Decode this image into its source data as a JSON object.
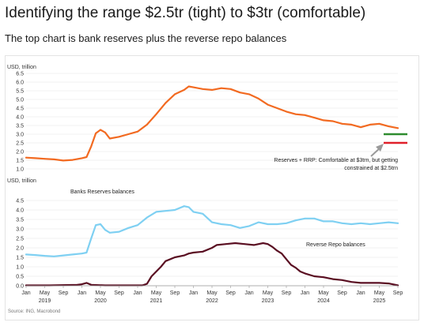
{
  "header": {
    "title": "Identifying the range $2.5tr (tight) to $3tr (comfortable)",
    "subtitle": "The top chart is bank reserves plus the reverse repo balances"
  },
  "source": "Source: ING, Macrobond",
  "colors": {
    "reserves_plus_rrp": "#f26a21",
    "bank_reserves": "#7fd0f2",
    "reverse_repo": "#5a0f22",
    "comfortable_line": "#2e8b2e",
    "tight_line": "#e0202a",
    "annotation_arrow": "#9a9a9a",
    "grid": "#e6e6e6"
  },
  "chart_data": [
    {
      "type": "line",
      "ylabel": "USD, trillion",
      "ylim": [
        1.0,
        6.5
      ],
      "yticks": [
        "6.5",
        "6.0",
        "5.5",
        "5.0",
        "4.5",
        "4.0",
        "3.5",
        "3.0",
        "2.5",
        "2.0",
        "1.5",
        "1.0"
      ],
      "xlim": [
        "2019-01",
        "2025-09"
      ],
      "series": [
        {
          "name": "",
          "points": [
            [
              "2019-01",
              1.65
            ],
            [
              "2019-03",
              1.62
            ],
            [
              "2019-05",
              1.58
            ],
            [
              "2019-07",
              1.55
            ],
            [
              "2019-09",
              1.48
            ],
            [
              "2019-11",
              1.52
            ],
            [
              "2020-01",
              1.62
            ],
            [
              "2020-02",
              1.68
            ],
            [
              "2020-03",
              2.3
            ],
            [
              "2020-04",
              3.05
            ],
            [
              "2020-05",
              3.25
            ],
            [
              "2020-06",
              3.1
            ],
            [
              "2020-07",
              2.75
            ],
            [
              "2020-09",
              2.85
            ],
            [
              "2020-11",
              3.0
            ],
            [
              "2021-01",
              3.15
            ],
            [
              "2021-03",
              3.55
            ],
            [
              "2021-05",
              4.15
            ],
            [
              "2021-07",
              4.8
            ],
            [
              "2021-09",
              5.3
            ],
            [
              "2021-11",
              5.55
            ],
            [
              "2021-12",
              5.75
            ],
            [
              "2022-01",
              5.7
            ],
            [
              "2022-03",
              5.6
            ],
            [
              "2022-05",
              5.55
            ],
            [
              "2022-07",
              5.65
            ],
            [
              "2022-09",
              5.6
            ],
            [
              "2022-11",
              5.4
            ],
            [
              "2023-01",
              5.3
            ],
            [
              "2023-03",
              5.05
            ],
            [
              "2023-05",
              4.7
            ],
            [
              "2023-07",
              4.5
            ],
            [
              "2023-09",
              4.3
            ],
            [
              "2023-11",
              4.15
            ],
            [
              "2024-01",
              4.1
            ],
            [
              "2024-03",
              3.95
            ],
            [
              "2024-05",
              3.8
            ],
            [
              "2024-07",
              3.75
            ],
            [
              "2024-09",
              3.6
            ],
            [
              "2024-11",
              3.55
            ],
            [
              "2025-01",
              3.4
            ],
            [
              "2025-03",
              3.55
            ],
            [
              "2025-05",
              3.6
            ],
            [
              "2025-07",
              3.45
            ],
            [
              "2025-09",
              3.35
            ]
          ]
        }
      ],
      "reference_lines": [
        {
          "value": 3.0,
          "color_key": "comfortable_line"
        },
        {
          "value": 2.5,
          "color_key": "tight_line"
        }
      ],
      "annotation": "Reserves + RRP: Comfortable at $3trn, but getting constrained at $2.5trn",
      "annotation_lines": [
        "Reserves + RRP: Comfortable at $3trn, but getting",
        "constrained at $2.5trn"
      ]
    },
    {
      "type": "line",
      "ylabel": "USD, trillion",
      "ylim": [
        0.0,
        4.5
      ],
      "yticks": [
        "4.5",
        "4.0",
        "3.5",
        "3.0",
        "2.5",
        "2.0",
        "1.5",
        "1.0",
        "0.5",
        "0.0"
      ],
      "xlim": [
        "2019-01",
        "2025-09"
      ],
      "xtick_months": [
        "Jan",
        "May",
        "Sep",
        "Jan",
        "May",
        "Sep",
        "Jan",
        "May",
        "Sep",
        "Jan",
        "May",
        "Sep",
        "Jan",
        "May",
        "Sep",
        "Jan",
        "May",
        "Sep",
        "Jan",
        "May",
        "Sep"
      ],
      "xtick_years": [
        "2019",
        "2020",
        "2021",
        "2022",
        "2023",
        "2024",
        "2025"
      ],
      "series": [
        {
          "name": "Banks Reserves balances",
          "points": [
            [
              "2019-01",
              1.65
            ],
            [
              "2019-03",
              1.62
            ],
            [
              "2019-05",
              1.58
            ],
            [
              "2019-07",
              1.55
            ],
            [
              "2019-09",
              1.6
            ],
            [
              "2019-11",
              1.65
            ],
            [
              "2020-01",
              1.7
            ],
            [
              "2020-02",
              1.75
            ],
            [
              "2020-03",
              2.5
            ],
            [
              "2020-04",
              3.2
            ],
            [
              "2020-05",
              3.25
            ],
            [
              "2020-06",
              2.95
            ],
            [
              "2020-07",
              2.8
            ],
            [
              "2020-09",
              2.85
            ],
            [
              "2020-11",
              3.05
            ],
            [
              "2021-01",
              3.2
            ],
            [
              "2021-03",
              3.6
            ],
            [
              "2021-05",
              3.9
            ],
            [
              "2021-07",
              3.95
            ],
            [
              "2021-09",
              4.0
            ],
            [
              "2021-11",
              4.2
            ],
            [
              "2021-12",
              4.15
            ],
            [
              "2022-01",
              3.9
            ],
            [
              "2022-03",
              3.8
            ],
            [
              "2022-05",
              3.35
            ],
            [
              "2022-07",
              3.25
            ],
            [
              "2022-09",
              3.2
            ],
            [
              "2022-11",
              3.05
            ],
            [
              "2023-01",
              3.15
            ],
            [
              "2023-03",
              3.35
            ],
            [
              "2023-05",
              3.25
            ],
            [
              "2023-07",
              3.25
            ],
            [
              "2023-09",
              3.3
            ],
            [
              "2023-11",
              3.45
            ],
            [
              "2024-01",
              3.55
            ],
            [
              "2024-03",
              3.55
            ],
            [
              "2024-05",
              3.4
            ],
            [
              "2024-07",
              3.4
            ],
            [
              "2024-09",
              3.3
            ],
            [
              "2024-11",
              3.25
            ],
            [
              "2025-01",
              3.3
            ],
            [
              "2025-03",
              3.25
            ],
            [
              "2025-05",
              3.3
            ],
            [
              "2025-07",
              3.35
            ],
            [
              "2025-09",
              3.3
            ]
          ]
        },
        {
          "name": "Reverse Repo balances",
          "points": [
            [
              "2019-01",
              0.02
            ],
            [
              "2019-06",
              0.02
            ],
            [
              "2019-12",
              0.05
            ],
            [
              "2020-01",
              0.08
            ],
            [
              "2020-02",
              0.15
            ],
            [
              "2020-03",
              0.05
            ],
            [
              "2020-06",
              0.02
            ],
            [
              "2020-12",
              0.02
            ],
            [
              "2021-02",
              0.02
            ],
            [
              "2021-03",
              0.1
            ],
            [
              "2021-04",
              0.5
            ],
            [
              "2021-05",
              0.75
            ],
            [
              "2021-06",
              1.0
            ],
            [
              "2021-07",
              1.3
            ],
            [
              "2021-09",
              1.5
            ],
            [
              "2021-11",
              1.6
            ],
            [
              "2021-12",
              1.7
            ],
            [
              "2022-01",
              1.75
            ],
            [
              "2022-03",
              1.8
            ],
            [
              "2022-05",
              2.0
            ],
            [
              "2022-06",
              2.15
            ],
            [
              "2022-08",
              2.2
            ],
            [
              "2022-10",
              2.25
            ],
            [
              "2022-12",
              2.2
            ],
            [
              "2023-02",
              2.15
            ],
            [
              "2023-04",
              2.25
            ],
            [
              "2023-05",
              2.2
            ],
            [
              "2023-06",
              2.05
            ],
            [
              "2023-07",
              1.85
            ],
            [
              "2023-08",
              1.7
            ],
            [
              "2023-09",
              1.4
            ],
            [
              "2023-10",
              1.1
            ],
            [
              "2023-11",
              0.95
            ],
            [
              "2023-12",
              0.75
            ],
            [
              "2024-01",
              0.65
            ],
            [
              "2024-03",
              0.5
            ],
            [
              "2024-05",
              0.45
            ],
            [
              "2024-07",
              0.35
            ],
            [
              "2024-09",
              0.3
            ],
            [
              "2024-11",
              0.2
            ],
            [
              "2025-01",
              0.15
            ],
            [
              "2025-03",
              0.15
            ],
            [
              "2025-05",
              0.15
            ],
            [
              "2025-07",
              0.12
            ],
            [
              "2025-09",
              0.02
            ]
          ]
        }
      ]
    }
  ]
}
